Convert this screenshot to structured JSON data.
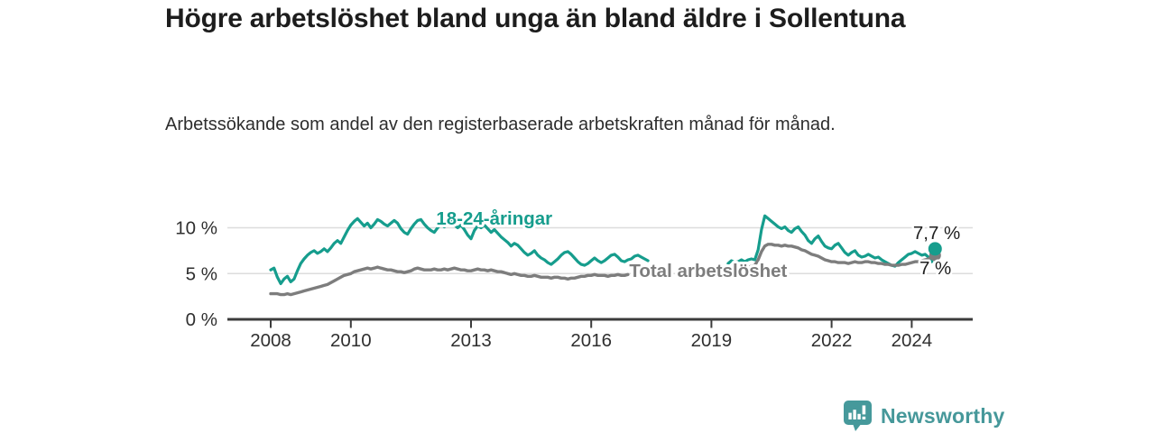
{
  "header": {
    "title": "Högre arbetslöshet bland unga än bland äldre i Sollentuna",
    "subtitle": "Arbetssökande som andel av den registerbaserade arbetskraften månad för månad."
  },
  "branding": {
    "logo_text": "Newsworthy",
    "logo_icon": "bar-chart-speech-bubble-icon",
    "logo_color": "#46989a"
  },
  "colors": {
    "young_line": "#169d8d",
    "total_line": "#7d7d7d",
    "gridline": "#dcdcdc",
    "axis": "#3c3c3c",
    "tick_text": "#2f2f2f",
    "end_label_text": "#1f1f1f",
    "background": "#ffffff"
  },
  "chart_data": {
    "type": "line",
    "unit": "%",
    "title": "Högre arbetslöshet bland unga än bland äldre i Sollentuna",
    "xlabel": "",
    "ylabel": "%",
    "grid": "horizontal-only",
    "legend_position": "inline-labels",
    "x_axis": {
      "tick_labels": [
        "2008",
        "2010",
        "2013",
        "2016",
        "2019",
        "2022",
        "2024"
      ],
      "tick_years": [
        2008,
        2010,
        2013,
        2016,
        2019,
        2022,
        2024
      ],
      "range_years": [
        2006.9,
        2025.5
      ]
    },
    "y_axis": {
      "tick_labels": [
        "0 %",
        "5 %",
        "10 %"
      ],
      "tick_values": [
        0,
        5,
        10
      ],
      "range": [
        0,
        12.2
      ]
    },
    "data_gap_note": "series interrupted between mid-2017 and mid-2019",
    "series": [
      {
        "name": "18-24-åringar",
        "color_key": "young_line",
        "line_width": 3.2,
        "label_pos": {
          "year": 2013.58,
          "value": 10.35
        },
        "end_dot": {
          "year": 2024.583,
          "value": 7.7,
          "radius": 7.5
        },
        "end_label": "7,7 %",
        "segments": [
          {
            "start_year": 2008.0,
            "values": [
              5.4,
              5.6,
              4.6,
              3.9,
              4.4,
              4.7,
              4.1,
              4.4,
              5.3,
              6.1,
              6.6,
              7.0,
              7.3,
              7.5,
              7.2,
              7.4,
              7.7,
              7.4,
              7.8,
              8.3,
              8.6,
              8.3,
              9.0,
              9.7,
              10.3,
              10.7,
              11.0,
              10.6,
              10.2,
              10.5,
              10.0,
              10.4,
              10.9,
              10.7,
              10.4,
              10.2,
              10.5,
              10.8,
              10.5,
              9.9,
              9.5,
              9.3,
              9.9,
              10.4,
              10.8,
              10.9,
              10.4,
              10.0,
              9.7,
              9.5,
              10.0,
              10.4,
              10.1,
              10.5,
              10.8,
              10.3,
              10.0,
              10.3,
              9.8,
              9.2,
              8.8,
              9.7,
              10.2,
              10.0,
              10.3,
              9.9,
              9.5,
              9.8,
              9.4,
              9.0,
              8.7,
              8.4,
              8.0,
              8.3,
              8.1,
              7.7,
              7.3,
              7.0,
              7.2,
              7.5,
              7.0,
              6.7,
              6.5,
              6.2,
              6.0,
              6.3,
              6.6,
              7.0,
              7.3,
              7.4,
              7.1,
              6.7,
              6.3,
              6.0,
              5.9,
              6.1,
              6.4,
              6.7,
              6.4,
              6.2,
              6.4,
              6.7,
              7.0,
              7.1,
              6.8,
              6.4,
              6.3,
              6.5,
              6.6,
              6.9,
              7.0,
              6.8,
              6.6,
              6.4
            ]
          },
          {
            "start_year": 2019.417,
            "values": [
              6.1,
              6.4,
              6.2,
              6.3,
              6.5,
              6.3,
              6.5,
              6.6,
              6.5,
              7.6,
              9.8,
              11.3,
              11.0,
              10.7,
              10.4,
              10.1,
              9.9,
              10.1,
              9.7,
              9.5,
              9.9,
              10.1,
              9.6,
              9.2,
              8.6,
              8.3,
              8.8,
              9.1,
              8.5,
              8.0,
              7.8,
              7.7,
              8.1,
              8.3,
              7.8,
              7.3,
              7.0,
              7.3,
              7.5,
              7.0,
              6.8,
              6.9,
              7.1,
              6.9,
              6.7,
              6.8,
              6.5,
              6.3,
              6.1,
              5.9,
              5.8,
              6.2,
              6.5,
              6.8,
              7.1,
              7.2,
              7.4,
              7.2,
              7.0,
              7.1,
              6.8,
              6.3,
              7.7
            ]
          }
        ]
      },
      {
        "name": "Total arbetslöshet",
        "color_key": "total_line",
        "line_width": 3.4,
        "label_pos": {
          "year": 2018.92,
          "value": 4.62
        },
        "end_dot": {
          "year": 2024.583,
          "value": 7.0,
          "radius": 6.5
        },
        "end_label": "7 %",
        "segments": [
          {
            "start_year": 2008.0,
            "values": [
              2.8,
              2.8,
              2.8,
              2.7,
              2.7,
              2.8,
              2.7,
              2.8,
              2.9,
              3.0,
              3.1,
              3.2,
              3.3,
              3.4,
              3.5,
              3.6,
              3.7,
              3.8,
              4.0,
              4.2,
              4.4,
              4.6,
              4.8,
              4.9,
              5.0,
              5.2,
              5.3,
              5.4,
              5.5,
              5.6,
              5.5,
              5.6,
              5.7,
              5.6,
              5.5,
              5.4,
              5.4,
              5.3,
              5.2,
              5.2,
              5.1,
              5.2,
              5.3,
              5.5,
              5.6,
              5.5,
              5.4,
              5.4,
              5.4,
              5.5,
              5.4,
              5.4,
              5.5,
              5.4,
              5.5,
              5.6,
              5.5,
              5.4,
              5.4,
              5.3,
              5.3,
              5.4,
              5.5,
              5.4,
              5.4,
              5.3,
              5.4,
              5.3,
              5.2,
              5.2,
              5.1,
              5.0,
              4.9,
              5.0,
              4.9,
              4.8,
              4.8,
              4.7,
              4.7,
              4.8,
              4.7,
              4.6,
              4.6,
              4.6,
              4.5,
              4.6,
              4.6,
              4.5,
              4.5,
              4.4,
              4.5,
              4.5,
              4.6,
              4.7,
              4.7,
              4.8,
              4.8,
              4.9,
              4.8,
              4.8,
              4.8,
              4.7,
              4.8,
              4.8,
              4.9,
              4.8,
              4.8,
              4.9
            ]
          },
          {
            "start_year": 2019.417,
            "values": [
              5.3,
              5.4,
              5.4,
              5.5,
              5.5,
              5.6,
              5.7,
              5.8,
              5.9,
              6.5,
              7.4,
              8.0,
              8.2,
              8.2,
              8.1,
              8.1,
              8.0,
              8.1,
              8.0,
              8.0,
              7.9,
              7.8,
              7.6,
              7.5,
              7.3,
              7.1,
              7.0,
              6.9,
              6.7,
              6.5,
              6.4,
              6.3,
              6.3,
              6.2,
              6.2,
              6.2,
              6.1,
              6.2,
              6.3,
              6.2,
              6.2,
              6.3,
              6.3,
              6.2,
              6.2,
              6.1,
              6.1,
              6.0,
              6.0,
              5.9,
              5.9,
              5.9,
              6.0,
              6.0,
              6.1,
              6.2,
              6.3,
              6.3,
              6.4,
              6.5,
              6.6,
              6.8,
              7.0
            ]
          }
        ]
      }
    ]
  }
}
